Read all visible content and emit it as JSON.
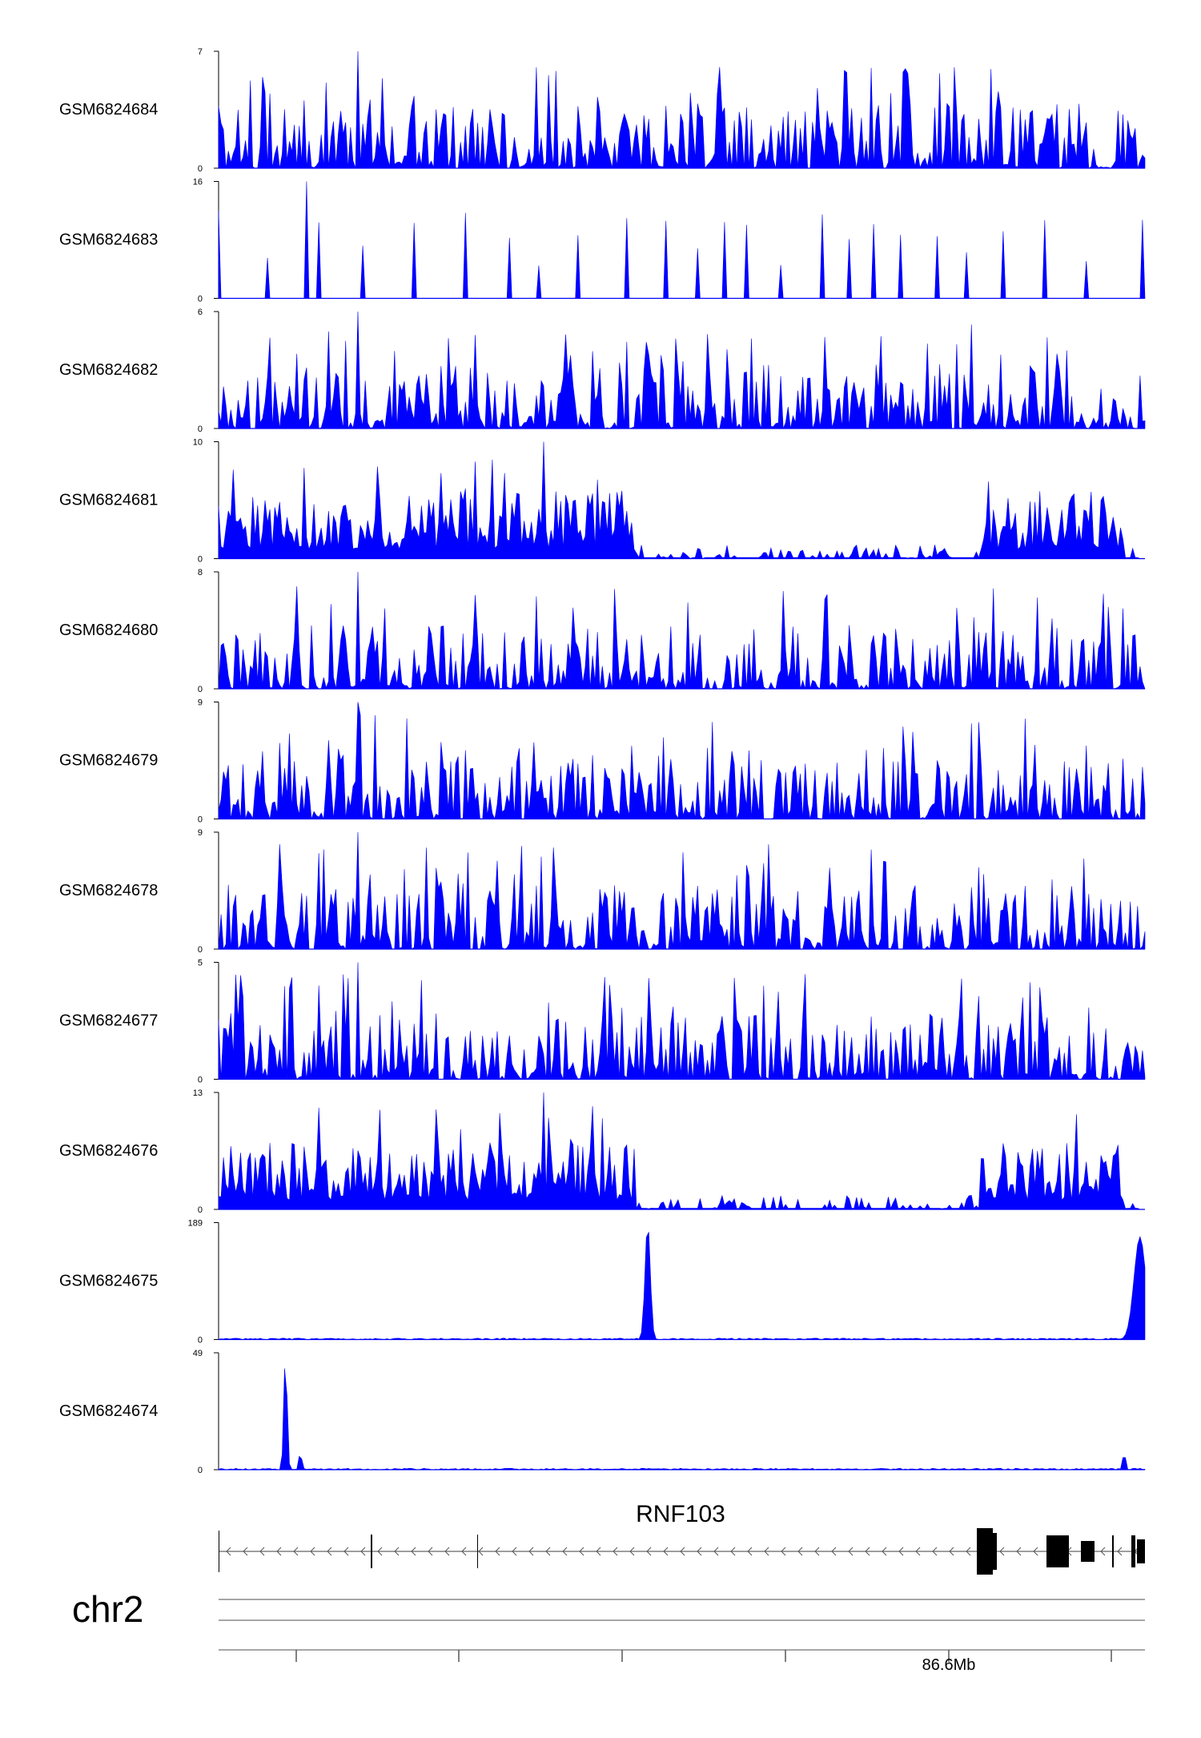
{
  "chart_data": {
    "type": "area",
    "tracks": [
      {
        "name": "GSM6824684",
        "ymin_label": "0",
        "ymax_label": "7",
        "ymax": 7,
        "baseline": 0,
        "profile": "dense",
        "peak": 7
      },
      {
        "name": "GSM6824683",
        "ymin_label": "0",
        "ymax_label": "16",
        "ymax": 16,
        "baseline": 0,
        "profile": "sparse",
        "peak": 16
      },
      {
        "name": "GSM6824682",
        "ymin_label": "0",
        "ymax_label": "6",
        "ymax": 6,
        "baseline": 0,
        "profile": "dense",
        "peak": 6
      },
      {
        "name": "GSM6824681",
        "ymin_label": "0",
        "ymax_label": "10",
        "ymax": 10,
        "baseline": 0,
        "profile": "domains",
        "peak": 10
      },
      {
        "name": "GSM6824680",
        "ymin_label": "0",
        "ymax_label": "8",
        "ymax": 8,
        "baseline": 0,
        "profile": "dense",
        "peak": 8
      },
      {
        "name": "GSM6824679",
        "ymin_label": "0",
        "ymax_label": "9",
        "ymax": 9,
        "baseline": 0,
        "profile": "dense",
        "peak": 9
      },
      {
        "name": "GSM6824678",
        "ymin_label": "0",
        "ymax_label": "9",
        "ymax": 9,
        "baseline": 0,
        "profile": "dense",
        "peak": 9
      },
      {
        "name": "GSM6824677",
        "ymin_label": "0",
        "ymax_label": "5",
        "ymax": 5,
        "baseline": 0,
        "profile": "dense",
        "peak": 5
      },
      {
        "name": "GSM6824676",
        "ymin_label": "0",
        "ymax_label": "13",
        "ymax": 13,
        "baseline": 0,
        "profile": "domains",
        "peak": 13
      },
      {
        "name": "GSM6824675",
        "ymin_label": "0",
        "ymax_label": "189",
        "ymax": 189,
        "baseline": 0,
        "profile": "peaks",
        "peak": 189
      },
      {
        "name": "GSM6824674",
        "ymin_label": "0",
        "ymax_label": "49",
        "ymax": 49,
        "baseline": 0,
        "profile": "peaks",
        "peak": 49
      }
    ],
    "gene": {
      "name": "RNF103",
      "strand": "-"
    },
    "chromosome": "chr2",
    "genome_axis": {
      "tick_label": "86.6Mb"
    },
    "color": "#0000ff"
  }
}
